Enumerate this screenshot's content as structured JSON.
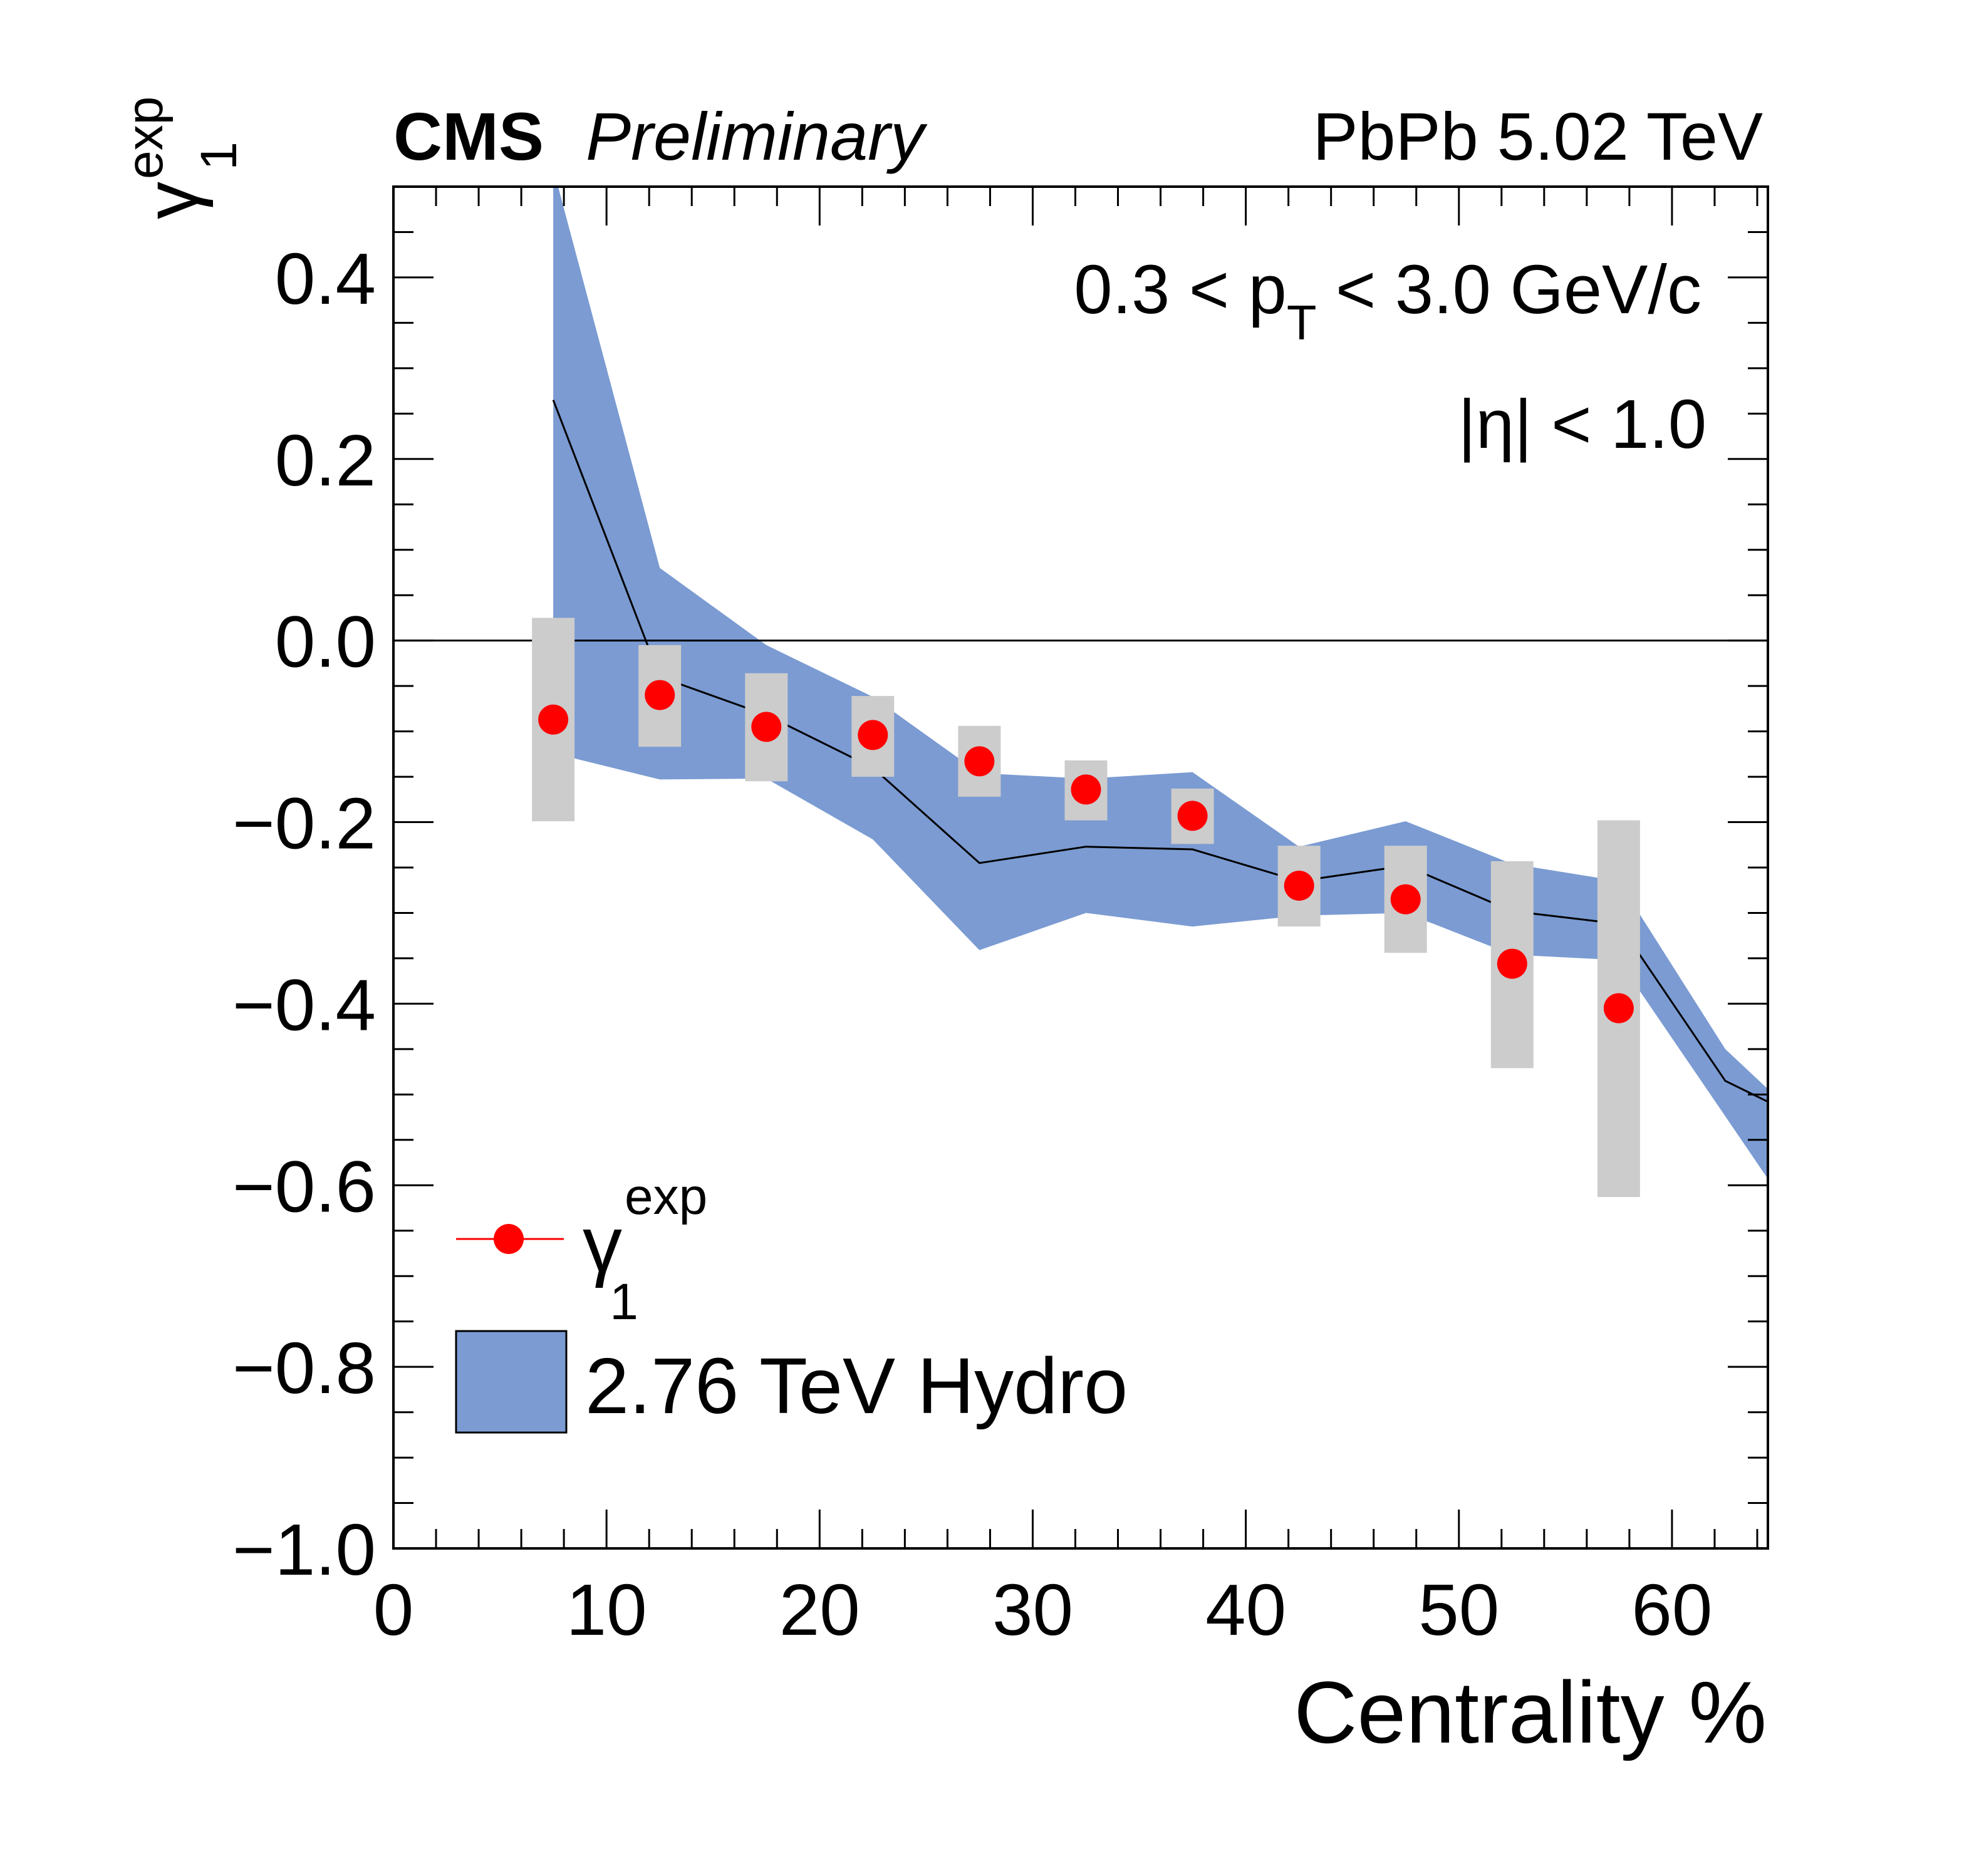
{
  "chart_data": {
    "type": "scatter",
    "header": {
      "experiment": "CMS",
      "status": "Preliminary",
      "system": "PbPb 5.02 TeV"
    },
    "annotations": {
      "pt_cut": {
        "prefix": "0.3 < p",
        "sub": "T",
        "suffix": " < 3.0 GeV/c"
      },
      "eta_cut": "|η| < 1.0"
    },
    "x_axis": {
      "title": "Centrality %",
      "range": [
        0,
        64.5
      ],
      "major_ticks": [
        0,
        10,
        20,
        30,
        40,
        50,
        60
      ],
      "tick_labels": [
        "0",
        "10",
        "20",
        "30",
        "40",
        "50",
        "60"
      ],
      "minor_step": 2
    },
    "y_axis": {
      "title": {
        "base": "γ",
        "sub": "1",
        "sup": "exp"
      },
      "range": [
        -1.0,
        0.5
      ],
      "major_ticks": [
        -1.0,
        -0.8,
        -0.6,
        -0.4,
        -0.2,
        0.0,
        0.2,
        0.4
      ],
      "tick_labels": [
        "−1.0",
        "−0.8",
        "−0.6",
        "−0.4",
        "−0.2",
        "0.0",
        "0.2",
        "0.4"
      ],
      "minor_step": 0.05
    },
    "reference_line_y": 0.0,
    "grid": false,
    "series": [
      {
        "name": "γ1exp",
        "legend_label": {
          "base": "γ",
          "sub": "1",
          "sup": "exp"
        },
        "kind": "points_with_sys_boxes",
        "color": "#ff0000",
        "box_color": "#cccccc",
        "points": [
          {
            "x": 7.5,
            "y": -0.087,
            "sys_low": -0.199,
            "sys_high": 0.025
          },
          {
            "x": 12.5,
            "y": -0.06,
            "sys_low": -0.117,
            "sys_high": -0.005
          },
          {
            "x": 17.5,
            "y": -0.095,
            "sys_low": -0.155,
            "sys_high": -0.036
          },
          {
            "x": 22.5,
            "y": -0.104,
            "sys_low": -0.15,
            "sys_high": -0.061
          },
          {
            "x": 27.5,
            "y": -0.133,
            "sys_low": -0.172,
            "sys_high": -0.094
          },
          {
            "x": 32.5,
            "y": -0.164,
            "sys_low": -0.198,
            "sys_high": -0.132
          },
          {
            "x": 37.5,
            "y": -0.193,
            "sys_low": -0.224,
            "sys_high": -0.163
          },
          {
            "x": 42.5,
            "y": -0.27,
            "sys_low": -0.315,
            "sys_high": -0.226
          },
          {
            "x": 47.5,
            "y": -0.285,
            "sys_low": -0.344,
            "sys_high": -0.226
          },
          {
            "x": 52.5,
            "y": -0.356,
            "sys_low": -0.471,
            "sys_high": -0.243
          },
          {
            "x": 57.5,
            "y": -0.405,
            "sys_low": -0.613,
            "sys_high": -0.198
          }
        ]
      },
      {
        "name": "2.76 TeV Hydro",
        "legend_label": "2.76 TeV Hydro",
        "kind": "band_with_central_line",
        "fill_color": "#7b9bd2",
        "line_color": "#000000",
        "x": [
          7.5,
          12.5,
          17.5,
          22.5,
          27.5,
          32.5,
          37.5,
          42.5,
          47.5,
          52.5,
          57.5,
          62.5,
          64.5
        ],
        "center": [
          0.265,
          -0.04,
          -0.082,
          -0.14,
          -0.245,
          -0.227,
          -0.23,
          -0.265,
          -0.248,
          -0.298,
          -0.312,
          -0.485,
          -0.508
        ],
        "upper": [
          0.52,
          0.08,
          -0.005,
          -0.062,
          -0.146,
          -0.152,
          -0.145,
          -0.227,
          -0.199,
          -0.246,
          -0.265,
          -0.45,
          -0.494
        ],
        "lower": [
          -0.124,
          -0.153,
          -0.152,
          -0.219,
          -0.341,
          -0.3,
          -0.315,
          -0.303,
          -0.3,
          -0.346,
          -0.352,
          -0.524,
          -0.593
        ]
      }
    ],
    "legend": {
      "position": "bottom-left"
    }
  }
}
